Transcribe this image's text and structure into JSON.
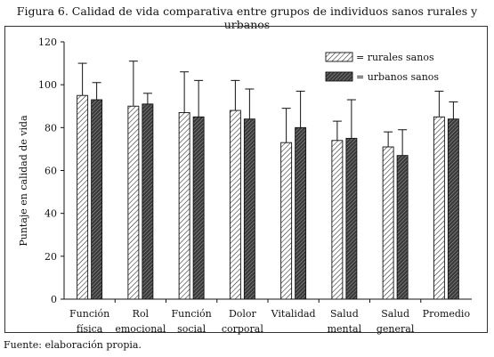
{
  "figure_title": "Figura 6. Calidad de vida comparativa entre grupos de individuos sanos rurales y urbanos",
  "source_note": "Fuente: elaboración propia.",
  "colors": {
    "rural_fill": "hatch-light",
    "urban_fill": "hatch-dark",
    "axis": "#111111"
  },
  "chart_data": {
    "type": "bar",
    "title": "",
    "xlabel": "",
    "ylabel": "Puntaje en calidad de vida",
    "ylim": [
      0,
      120
    ],
    "yticks": [
      0,
      20,
      40,
      60,
      80,
      100,
      120
    ],
    "grid": false,
    "legend_position": "top-right",
    "categories": [
      [
        "Función",
        "física"
      ],
      [
        "Rol",
        "emocional"
      ],
      [
        "Función",
        "social"
      ],
      [
        "Dolor",
        "corporal"
      ],
      [
        "Vitalidad"
      ],
      [
        "Salud",
        "mental"
      ],
      [
        "Salud",
        "general"
      ],
      [
        "Promedio"
      ]
    ],
    "series": [
      {
        "name": "= rurales sanos",
        "values": [
          95,
          90,
          87,
          88,
          73,
          74,
          71,
          85
        ],
        "error_upper": [
          110,
          111,
          106,
          102,
          89,
          83,
          78,
          97
        ]
      },
      {
        "name": "= urbanos sanos",
        "values": [
          93,
          91,
          85,
          84,
          80,
          75,
          67,
          84
        ],
        "error_upper": [
          101,
          96,
          102,
          98,
          97,
          93,
          79,
          92
        ]
      }
    ]
  }
}
